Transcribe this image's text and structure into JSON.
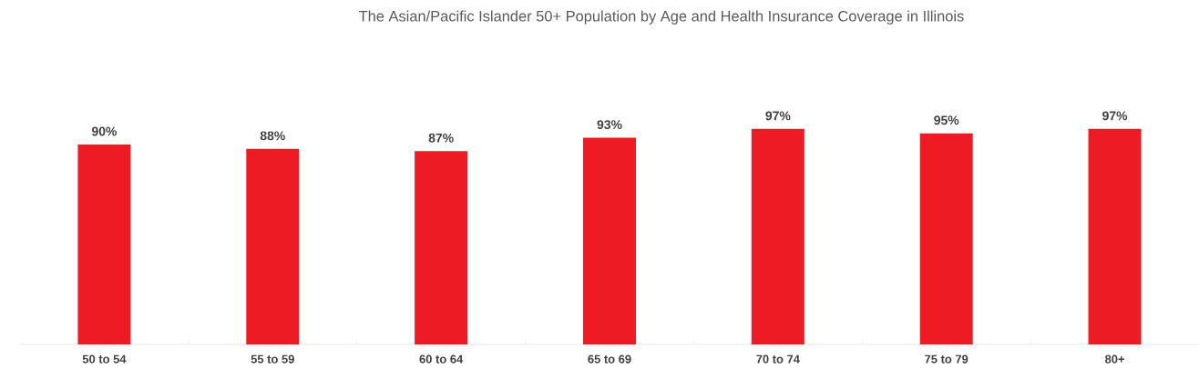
{
  "chart_data": {
    "type": "bar",
    "title": "The Asian/Pacific Islander 50+ Population by Age and Health Insurance Coverage in Illinois",
    "categories": [
      "50 to 54",
      "55 to 59",
      "60 to 64",
      "65 to 69",
      "70 to 74",
      "75 to 79",
      "80+"
    ],
    "values": [
      90,
      88,
      87,
      93,
      97,
      95,
      97
    ],
    "value_labels": [
      "90%",
      "88%",
      "87%",
      "93%",
      "97%",
      "95%",
      "97%"
    ],
    "color": "#ed1c24",
    "grid": false
  }
}
